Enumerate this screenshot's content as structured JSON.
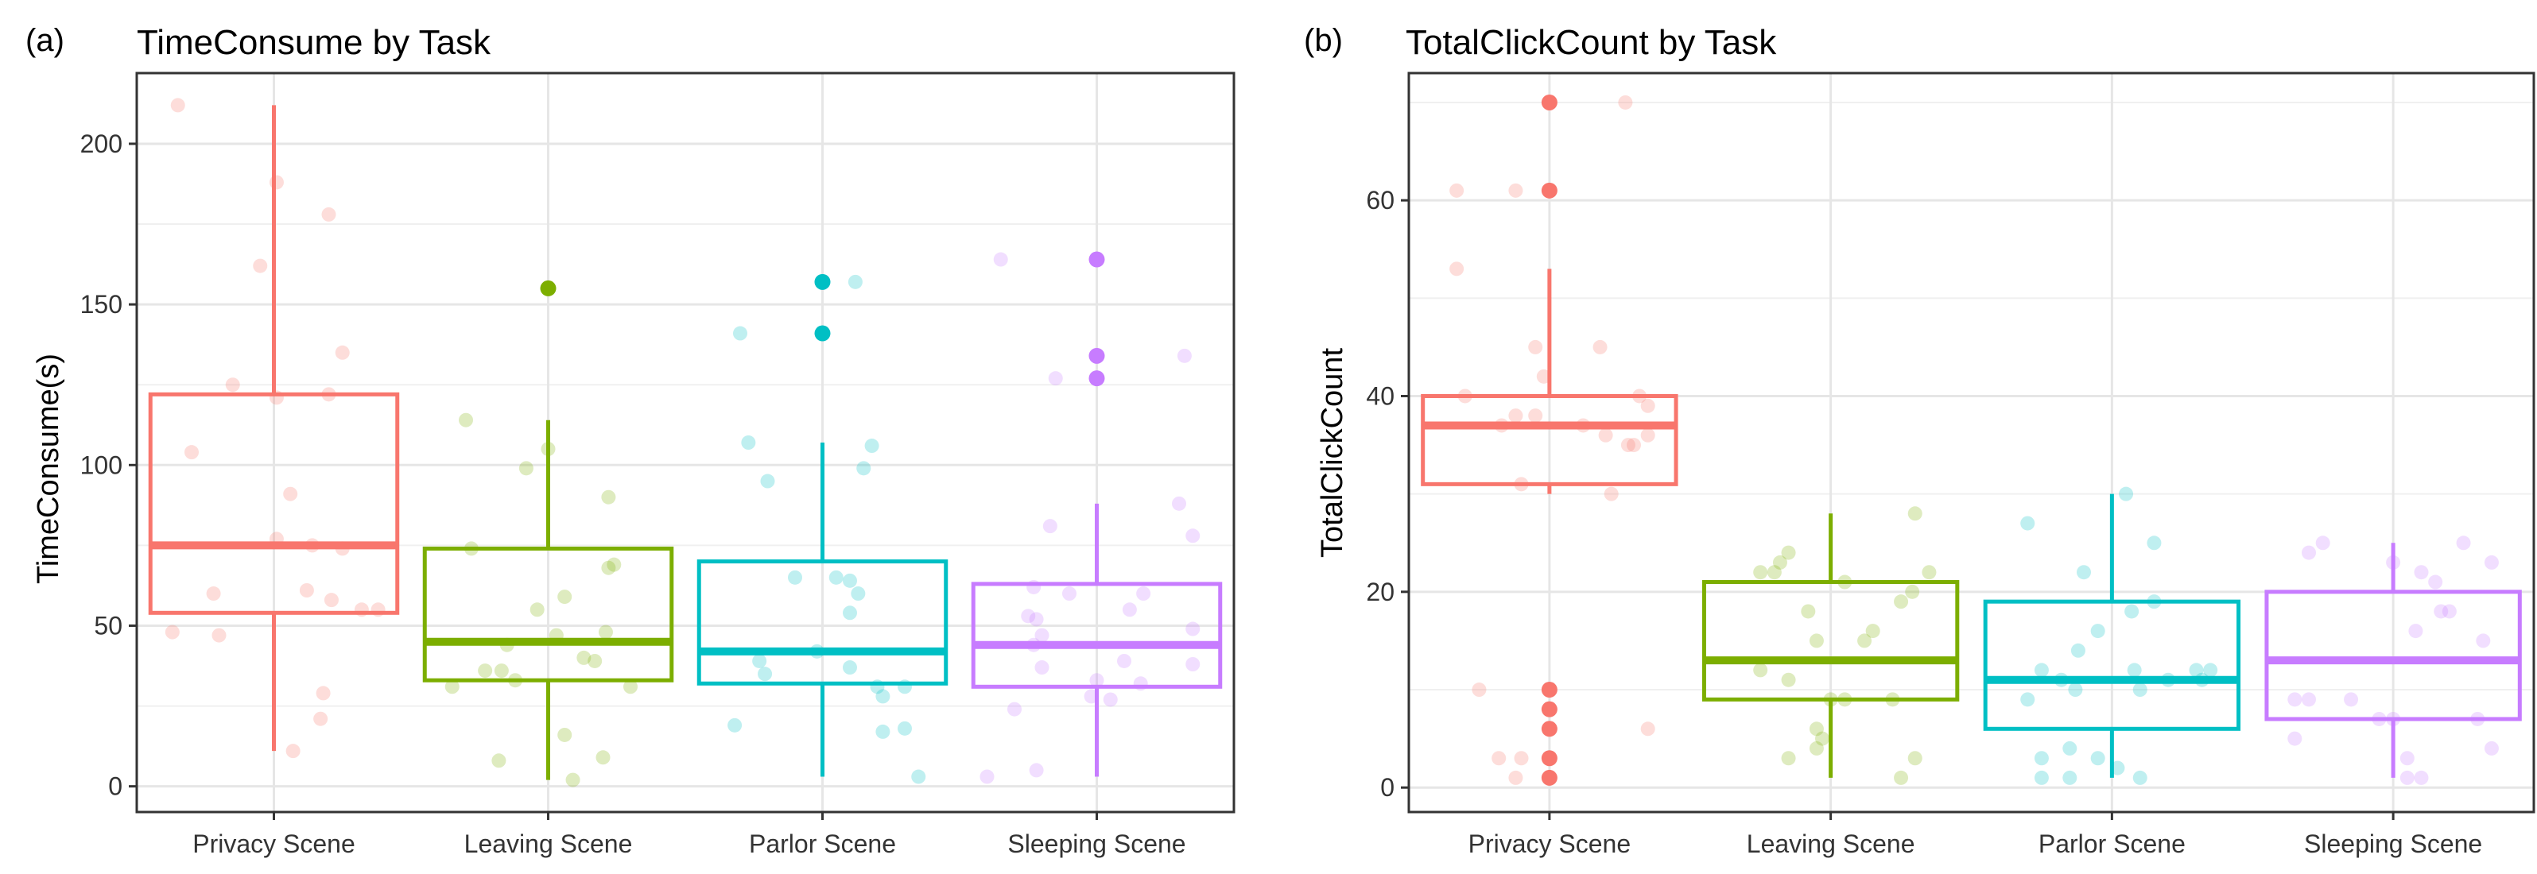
{
  "chart_data": [
    {
      "panel_label": "(a)",
      "type": "box",
      "title": "TimeConsume by Task",
      "xlabel": "",
      "ylabel": "TimeConsume(s)",
      "ylim": [
        -8,
        222
      ],
      "yticks": [
        0,
        50,
        100,
        150,
        200
      ],
      "categories": [
        "Privacy Scene",
        "Leaving Scene",
        "Parlor Scene",
        "Sleeping Scene"
      ],
      "colors": [
        "#F8766D",
        "#7CAE00",
        "#00BFC4",
        "#C77CFF"
      ],
      "grid": true,
      "boxes": [
        {
          "category": "Privacy Scene",
          "lower_whisker": 11,
          "q1": 54,
          "median": 75,
          "q3": 122,
          "upper_whisker": 212,
          "outliers": []
        },
        {
          "category": "Leaving Scene",
          "lower_whisker": 2,
          "q1": 33,
          "median": 45,
          "q3": 74,
          "upper_whisker": 114,
          "outliers": [
            155
          ]
        },
        {
          "category": "Parlor Scene",
          "lower_whisker": 3,
          "q1": 32,
          "median": 42,
          "q3": 70,
          "upper_whisker": 107,
          "outliers": [
            141,
            157
          ]
        },
        {
          "category": "Sleeping Scene",
          "lower_whisker": 3,
          "q1": 31,
          "median": 44,
          "q3": 63,
          "upper_whisker": 88,
          "outliers": [
            127,
            134,
            164
          ]
        }
      ],
      "jitter_points": [
        [
          [
            -0.35,
            212
          ],
          [
            0.01,
            188
          ],
          [
            0.2,
            178
          ],
          [
            -0.05,
            162
          ],
          [
            0.25,
            135
          ],
          [
            -0.15,
            125
          ],
          [
            0.2,
            122
          ],
          [
            0.01,
            121
          ],
          [
            -0.3,
            104
          ],
          [
            0.06,
            91
          ],
          [
            0.01,
            77
          ],
          [
            0.14,
            75
          ],
          [
            0.25,
            74
          ],
          [
            -0.22,
            60
          ],
          [
            0.12,
            61
          ],
          [
            0.21,
            58
          ],
          [
            0.32,
            55
          ],
          [
            0.38,
            55
          ],
          [
            -0.37,
            48
          ],
          [
            -0.2,
            47
          ],
          [
            0.18,
            29
          ],
          [
            0.17,
            21
          ],
          [
            0.07,
            11
          ]
        ],
        [
          [
            -0.3,
            114
          ],
          [
            0.0,
            105
          ],
          [
            -0.08,
            99
          ],
          [
            -0.28,
            74
          ],
          [
            0.22,
            90
          ],
          [
            0.22,
            68
          ],
          [
            0.24,
            69
          ],
          [
            0.06,
            59
          ],
          [
            -0.04,
            55
          ],
          [
            -0.15,
            44
          ],
          [
            0.03,
            47
          ],
          [
            0.21,
            48
          ],
          [
            0.17,
            39
          ],
          [
            0.13,
            40
          ],
          [
            -0.23,
            36
          ],
          [
            -0.17,
            36
          ],
          [
            -0.35,
            31
          ],
          [
            -0.12,
            33
          ],
          [
            0.3,
            31
          ],
          [
            0.06,
            16
          ],
          [
            0.2,
            9
          ],
          [
            -0.18,
            8
          ],
          [
            0.09,
            2
          ]
        ],
        [
          [
            -0.3,
            141
          ],
          [
            -0.27,
            107
          ],
          [
            -0.2,
            95
          ],
          [
            0.12,
            157
          ],
          [
            0.18,
            106
          ],
          [
            0.15,
            99
          ],
          [
            0.05,
            65
          ],
          [
            0.1,
            64
          ],
          [
            -0.1,
            65
          ],
          [
            0.13,
            60
          ],
          [
            0.1,
            54
          ],
          [
            -0.02,
            42
          ],
          [
            -0.23,
            39
          ],
          [
            -0.21,
            35
          ],
          [
            0.1,
            37
          ],
          [
            0.2,
            31
          ],
          [
            0.22,
            28
          ],
          [
            0.3,
            31
          ],
          [
            -0.32,
            19
          ],
          [
            0.3,
            18
          ],
          [
            0.22,
            17
          ],
          [
            0.35,
            3
          ]
        ],
        [
          [
            -0.35,
            164
          ],
          [
            -0.15,
            127
          ],
          [
            0.32,
            134
          ],
          [
            0.3,
            88
          ],
          [
            0.35,
            78
          ],
          [
            -0.17,
            81
          ],
          [
            -0.23,
            62
          ],
          [
            -0.1,
            60
          ],
          [
            0.12,
            55
          ],
          [
            -0.25,
            53
          ],
          [
            -0.22,
            52
          ],
          [
            -0.2,
            47
          ],
          [
            -0.23,
            44
          ],
          [
            0.35,
            49
          ],
          [
            0.17,
            60
          ],
          [
            0.35,
            38
          ],
          [
            -0.2,
            37
          ],
          [
            0.1,
            39
          ],
          [
            0.0,
            33
          ],
          [
            0.16,
            32
          ],
          [
            -0.3,
            24
          ],
          [
            -0.02,
            28
          ],
          [
            0.05,
            27
          ],
          [
            -0.22,
            5
          ],
          [
            -0.4,
            3
          ]
        ]
      ]
    },
    {
      "panel_label": "(b)",
      "type": "box",
      "title": "TotalClickCount by Task",
      "xlabel": "",
      "ylabel": "TotalClickCount",
      "ylim": [
        -2.5,
        73
      ],
      "yticks": [
        0,
        20,
        40,
        60
      ],
      "categories": [
        "Privacy Scene",
        "Leaving Scene",
        "Parlor Scene",
        "Sleeping Scene"
      ],
      "colors": [
        "#F8766D",
        "#7CAE00",
        "#00BFC4",
        "#C77CFF"
      ],
      "grid": true,
      "boxes": [
        {
          "category": "Privacy Scene",
          "lower_whisker": 30,
          "q1": 31,
          "median": 37,
          "q3": 40,
          "upper_whisker": 53,
          "outliers": [
            1,
            3,
            6,
            8,
            10,
            61,
            70
          ]
        },
        {
          "category": "Leaving Scene",
          "lower_whisker": 1,
          "q1": 9,
          "median": 13,
          "q3": 21,
          "upper_whisker": 28,
          "outliers": []
        },
        {
          "category": "Parlor Scene",
          "lower_whisker": 1,
          "q1": 6,
          "median": 11,
          "q3": 19,
          "upper_whisker": 30,
          "outliers": []
        },
        {
          "category": "Sleeping Scene",
          "lower_whisker": 1,
          "q1": 7,
          "median": 13,
          "q3": 20,
          "upper_whisker": 25,
          "outliers": []
        }
      ],
      "jitter_points": [
        [
          [
            -0.33,
            61
          ],
          [
            -0.12,
            61
          ],
          [
            0.27,
            70
          ],
          [
            -0.33,
            53
          ],
          [
            -0.05,
            45
          ],
          [
            0.18,
            45
          ],
          [
            -0.02,
            42
          ],
          [
            -0.3,
            40
          ],
          [
            0.32,
            40
          ],
          [
            0.35,
            39
          ],
          [
            -0.05,
            38
          ],
          [
            -0.12,
            38
          ],
          [
            0.12,
            37
          ],
          [
            0.35,
            36
          ],
          [
            -0.17,
            37
          ],
          [
            0.2,
            36
          ],
          [
            0.28,
            35
          ],
          [
            0.3,
            35
          ],
          [
            -0.1,
            31
          ],
          [
            0.22,
            30
          ],
          [
            -0.25,
            10
          ],
          [
            0.35,
            6
          ],
          [
            -0.18,
            3
          ],
          [
            -0.1,
            3
          ],
          [
            -0.12,
            1
          ]
        ],
        [
          [
            0.3,
            28
          ],
          [
            -0.15,
            24
          ],
          [
            -0.18,
            23
          ],
          [
            -0.25,
            22
          ],
          [
            -0.2,
            22
          ],
          [
            0.35,
            22
          ],
          [
            0.29,
            20
          ],
          [
            0.05,
            21
          ],
          [
            -0.08,
            18
          ],
          [
            0.25,
            19
          ],
          [
            0.15,
            16
          ],
          [
            -0.05,
            15
          ],
          [
            0.12,
            15
          ],
          [
            -0.25,
            12
          ],
          [
            -0.15,
            11
          ],
          [
            0.0,
            9
          ],
          [
            0.05,
            9
          ],
          [
            0.22,
            9
          ],
          [
            -0.05,
            6
          ],
          [
            -0.05,
            4
          ],
          [
            -0.03,
            5
          ],
          [
            0.3,
            3
          ],
          [
            -0.15,
            3
          ],
          [
            0.25,
            1
          ]
        ],
        [
          [
            -0.3,
            27
          ],
          [
            0.05,
            30
          ],
          [
            0.15,
            25
          ],
          [
            -0.1,
            22
          ],
          [
            0.15,
            19
          ],
          [
            0.07,
            18
          ],
          [
            -0.05,
            16
          ],
          [
            -0.12,
            14
          ],
          [
            -0.25,
            12
          ],
          [
            -0.3,
            9
          ],
          [
            -0.18,
            11
          ],
          [
            -0.13,
            10
          ],
          [
            0.08,
            12
          ],
          [
            0.1,
            10
          ],
          [
            0.2,
            11
          ],
          [
            0.3,
            12
          ],
          [
            0.35,
            12
          ],
          [
            0.32,
            11
          ],
          [
            -0.15,
            4
          ],
          [
            -0.25,
            3
          ],
          [
            -0.05,
            3
          ],
          [
            0.1,
            1
          ],
          [
            0.02,
            2
          ],
          [
            -0.15,
            1
          ],
          [
            -0.25,
            1
          ]
        ],
        [
          [
            -0.25,
            25
          ],
          [
            -0.3,
            24
          ],
          [
            0.0,
            23
          ],
          [
            0.1,
            22
          ],
          [
            0.25,
            25
          ],
          [
            0.35,
            23
          ],
          [
            0.15,
            21
          ],
          [
            0.17,
            18
          ],
          [
            0.2,
            18
          ],
          [
            0.08,
            16
          ],
          [
            0.32,
            15
          ],
          [
            -0.3,
            9
          ],
          [
            -0.35,
            9
          ],
          [
            -0.15,
            9
          ],
          [
            -0.05,
            7
          ],
          [
            0.0,
            7
          ],
          [
            0.3,
            7
          ],
          [
            0.35,
            4
          ],
          [
            -0.35,
            5
          ],
          [
            0.05,
            3
          ],
          [
            0.05,
            1
          ],
          [
            0.1,
            1
          ]
        ]
      ]
    }
  ]
}
